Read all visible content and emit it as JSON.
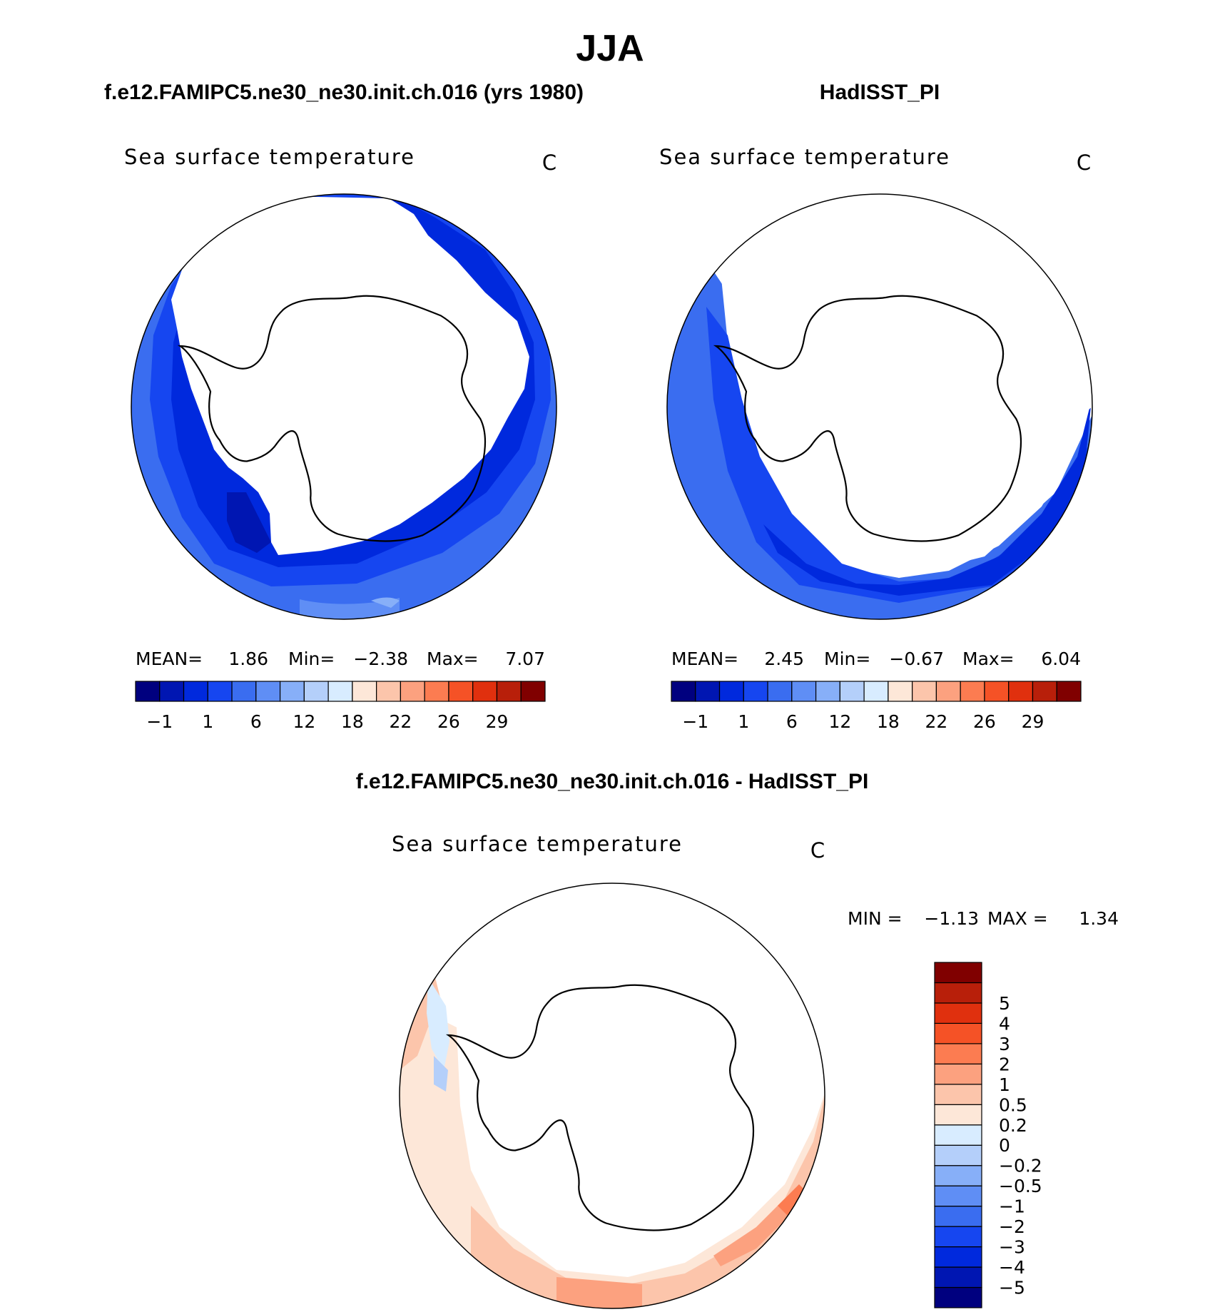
{
  "figure": {
    "title": "JJA",
    "top_left_title": "f.e12.FAMIPC5.ne30_ne30.init.ch.016 (yrs 1980)",
    "top_right_title": "HadISST_PI",
    "bottom_title": "f.e12.FAMIPC5.ne30_ne30.init.ch.016 - HadISST_PI"
  },
  "chart_data": [
    {
      "type": "heatmap",
      "panel": "model",
      "title": "Sea surface temperature",
      "units": "C",
      "stats": {
        "mean_label": "MEAN=",
        "mean": "1.86",
        "min_label": "Min=",
        "min": "−2.38",
        "max_label": "Max=",
        "max": "7.07"
      },
      "colorbar": {
        "orientation": "horizontal",
        "colors": [
          "#00007f",
          "#0016b2",
          "#0029dd",
          "#1646f0",
          "#3a6df0",
          "#5f8ef5",
          "#87aff8",
          "#b4cffa",
          "#d8ecff",
          "#fde7d8",
          "#fcc5ab",
          "#fca17f",
          "#fc7c51",
          "#f55226",
          "#e0300e",
          "#b81f0a",
          "#800000"
        ],
        "tick_labels": [
          "−1",
          "1",
          "6",
          "12",
          "18",
          "22",
          "26",
          "29"
        ]
      }
    },
    {
      "type": "heatmap",
      "panel": "observations",
      "title": "Sea surface temperature",
      "units": "C",
      "stats": {
        "mean_label": "MEAN=",
        "mean": "2.45",
        "min_label": "Min=",
        "min": "−0.67",
        "max_label": "Max=",
        "max": "6.04"
      },
      "colorbar": {
        "orientation": "horizontal",
        "colors": [
          "#00007f",
          "#0016b2",
          "#0029dd",
          "#1646f0",
          "#3a6df0",
          "#5f8ef5",
          "#87aff8",
          "#b4cffa",
          "#d8ecff",
          "#fde7d8",
          "#fcc5ab",
          "#fca17f",
          "#fc7c51",
          "#f55226",
          "#e0300e",
          "#b81f0a",
          "#800000"
        ],
        "tick_labels": [
          "−1",
          "1",
          "6",
          "12",
          "18",
          "22",
          "26",
          "29"
        ]
      }
    },
    {
      "type": "heatmap",
      "panel": "difference",
      "title": "Sea surface temperature",
      "units": "C",
      "stats": {
        "min_label": "MIN =",
        "min": "−1.13",
        "max_label": "MAX =",
        "max": "1.34"
      },
      "colorbar": {
        "orientation": "vertical",
        "colors": [
          "#00007f",
          "#0016b2",
          "#0029dd",
          "#1646f0",
          "#3a6df0",
          "#5f8ef5",
          "#87aff8",
          "#b4cffa",
          "#d8ecff",
          "#fde7d8",
          "#fcc5ab",
          "#fca17f",
          "#fc7c51",
          "#f55226",
          "#e0300e",
          "#b81f0a",
          "#800000"
        ],
        "tick_labels": [
          "−5",
          "−4",
          "−3",
          "−2",
          "−1",
          "−0.5",
          "−0.2",
          "0",
          "0.2",
          "0.5",
          "1",
          "2",
          "3",
          "4",
          "5"
        ]
      }
    }
  ]
}
